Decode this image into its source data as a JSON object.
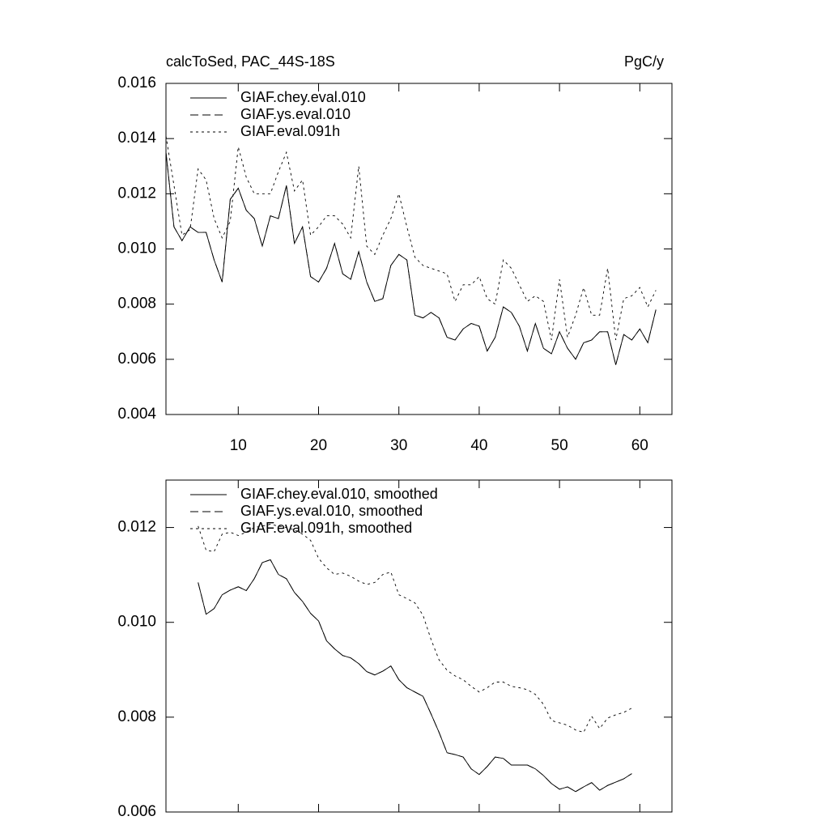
{
  "chart_data": [
    {
      "type": "line",
      "title": "calcToSed, PAC_44S-18S",
      "units": "PgC/y",
      "x": [
        1,
        2,
        3,
        4,
        5,
        6,
        7,
        8,
        9,
        10,
        11,
        12,
        13,
        14,
        15,
        16,
        17,
        18,
        19,
        20,
        21,
        22,
        23,
        24,
        25,
        26,
        27,
        28,
        29,
        30,
        31,
        32,
        33,
        34,
        35,
        36,
        37,
        38,
        39,
        40,
        41,
        42,
        43,
        44,
        45,
        46,
        47,
        48,
        49,
        50,
        51,
        52,
        53,
        54,
        55,
        56,
        57,
        58,
        59,
        60,
        61,
        62
      ],
      "xlim": [
        1,
        64
      ],
      "xticks": [
        10,
        20,
        30,
        40,
        50,
        60
      ],
      "ylim": [
        0.004,
        0.016
      ],
      "yticks": [
        0.004,
        0.006,
        0.008,
        {
          "value": 0.01,
          "label": "0.010"
        },
        0.012,
        0.014,
        0.016
      ],
      "series": [
        {
          "name": "GIAF.chey.eval.010",
          "color": "#000000",
          "style": "solid",
          "values": [
            0.0135,
            0.0108,
            0.0103,
            0.0108,
            0.0106,
            0.0106,
            0.0096,
            0.0088,
            0.0118,
            0.0122,
            0.0114,
            0.0111,
            0.0101,
            0.0112,
            0.0111,
            0.0123,
            0.0102,
            0.0108,
            0.009,
            0.0088,
            0.0093,
            0.0102,
            0.0091,
            0.0089,
            0.0099,
            0.0088,
            0.0081,
            0.0082,
            0.0094,
            0.0098,
            0.0096,
            0.0076,
            0.0075,
            0.0077,
            0.0075,
            0.0068,
            0.0067,
            0.0071,
            0.0073,
            0.0072,
            0.0063,
            0.0068,
            0.0079,
            0.0077,
            0.0072,
            0.0063,
            0.0073,
            0.0064,
            0.0062,
            0.007,
            0.0064,
            0.006,
            0.0066,
            0.0067,
            0.007,
            0.007,
            0.0058,
            0.0069,
            0.0067,
            0.0071,
            0.0066,
            0.0078
          ]
        },
        {
          "name": "GIAF.ys.eval.010",
          "color": "#000000",
          "style": "dashed",
          "values": [
            0.0135,
            0.0108,
            0.0103,
            0.0108,
            0.0106,
            0.0106,
            0.0096,
            0.0088,
            0.0118,
            0.0122,
            0.0114,
            0.0111,
            0.0101,
            0.0112,
            0.0111,
            0.0123,
            0.0102,
            0.0108,
            0.009,
            0.0088,
            0.0093,
            0.0102,
            0.0091,
            0.0089,
            0.0099,
            0.0088,
            0.0081,
            0.0082,
            0.0094,
            0.0098,
            0.0096,
            0.0076,
            0.0075,
            0.0077,
            0.0075,
            0.0068,
            0.0067,
            0.0071,
            0.0073,
            0.0072,
            0.0063,
            0.0068,
            0.0079,
            0.0077,
            0.0072,
            0.0063,
            0.0073,
            0.0064,
            0.0062,
            0.007,
            0.0064,
            0.006,
            0.0066,
            0.0067,
            0.007,
            0.007,
            0.0058,
            0.0069,
            0.0067,
            0.0071,
            0.0066,
            0.0078
          ]
        },
        {
          "name": "GIAF.eval.091h",
          "color": "#000000",
          "style": "dotted",
          "values": [
            0.0141,
            0.0123,
            0.0105,
            0.0107,
            0.0129,
            0.0125,
            0.0111,
            0.0104,
            0.011,
            0.0137,
            0.0126,
            0.012,
            0.012,
            0.012,
            0.0128,
            0.0135,
            0.0121,
            0.0125,
            0.0105,
            0.0108,
            0.0112,
            0.0112,
            0.0109,
            0.0104,
            0.013,
            0.0101,
            0.0098,
            0.0105,
            0.0111,
            0.012,
            0.0108,
            0.0097,
            0.0094,
            0.0093,
            0.0092,
            0.0091,
            0.0081,
            0.0087,
            0.0087,
            0.009,
            0.0082,
            0.008,
            0.0096,
            0.0093,
            0.0087,
            0.0081,
            0.0083,
            0.0081,
            0.0067,
            0.0089,
            0.0068,
            0.0076,
            0.0086,
            0.0076,
            0.0076,
            0.0093,
            0.0067,
            0.0082,
            0.0083,
            0.0086,
            0.0079,
            0.0085
          ]
        }
      ]
    },
    {
      "type": "line",
      "x": [
        5,
        6,
        7,
        8,
        9,
        10,
        11,
        12,
        13,
        14,
        15,
        16,
        17,
        18,
        19,
        20,
        21,
        22,
        23,
        24,
        25,
        26,
        27,
        28,
        29,
        30,
        31,
        32,
        33,
        34,
        35,
        36,
        37,
        38,
        39,
        40,
        41,
        42,
        43,
        44,
        45,
        46,
        47,
        48,
        49,
        50,
        51,
        52,
        53,
        54,
        55,
        56,
        57,
        58,
        59
      ],
      "xlim": [
        1,
        64
      ],
      "xticks": [
        10,
        20,
        30,
        40,
        50,
        60
      ],
      "ylim": [
        0.006,
        0.013
      ],
      "yticks": [
        0.006,
        0.008,
        {
          "value": 0.01,
          "label": "0.010"
        },
        0.012
      ],
      "series": [
        {
          "name": "GIAF.chey.eval.010, smoothed",
          "color": "#000000",
          "style": "solid",
          "values": [
            0.01084,
            0.01017,
            0.01029,
            0.01058,
            0.01068,
            0.01075,
            0.01067,
            0.01092,
            0.01126,
            0.01132,
            0.01101,
            0.01092,
            0.01063,
            0.01044,
            0.01019,
            0.01003,
            0.00961,
            0.00944,
            0.0093,
            0.00925,
            0.00913,
            0.00896,
            0.00889,
            0.00897,
            0.00908,
            0.00879,
            0.00862,
            0.00853,
            0.00844,
            0.00807,
            0.00768,
            0.00725,
            0.00721,
            0.00716,
            0.00691,
            0.00679,
            0.00696,
            0.00716,
            0.00713,
            0.00699,
            0.00699,
            0.00699,
            0.00691,
            0.00677,
            0.0066,
            0.00648,
            0.00653,
            0.00643,
            0.00653,
            0.00662,
            0.00646,
            0.00656,
            0.00663,
            0.0067,
            0.00681
          ]
        },
        {
          "name": "GIAF.ys.eval.010, smoothed",
          "color": "#000000",
          "style": "dashed",
          "values": [
            0.01084,
            0.01017,
            0.01029,
            0.01058,
            0.01068,
            0.01075,
            0.01067,
            0.01092,
            0.01126,
            0.01132,
            0.01101,
            0.01092,
            0.01063,
            0.01044,
            0.01019,
            0.01003,
            0.00961,
            0.00944,
            0.0093,
            0.00925,
            0.00913,
            0.00896,
            0.00889,
            0.00897,
            0.00908,
            0.00879,
            0.00862,
            0.00853,
            0.00844,
            0.00807,
            0.00768,
            0.00725,
            0.00721,
            0.00716,
            0.00691,
            0.00679,
            0.00696,
            0.00716,
            0.00713,
            0.00699,
            0.00699,
            0.00699,
            0.00691,
            0.00677,
            0.0066,
            0.00648,
            0.00653,
            0.00643,
            0.00653,
            0.00662,
            0.00646,
            0.00656,
            0.00663,
            0.0067,
            0.00681
          ]
        },
        {
          "name": "GIAF.eval.091h, smoothed",
          "color": "#000000",
          "style": "dotted",
          "values": [
            0.01203,
            0.01152,
            0.01149,
            0.01186,
            0.0119,
            0.01183,
            0.0119,
            0.012,
            0.01203,
            0.01207,
            0.01203,
            0.012,
            0.01195,
            0.01186,
            0.01173,
            0.01135,
            0.01115,
            0.01101,
            0.01104,
            0.01097,
            0.01087,
            0.0108,
            0.01084,
            0.01101,
            0.01106,
            0.01058,
            0.0105,
            0.01041,
            0.01015,
            0.00964,
            0.00921,
            0.00899,
            0.00887,
            0.00879,
            0.00865,
            0.00853,
            0.00862,
            0.00874,
            0.00874,
            0.00865,
            0.00862,
            0.00858,
            0.00848,
            0.00827,
            0.00793,
            0.00788,
            0.00783,
            0.00773,
            0.00768,
            0.00802,
            0.00776,
            0.00798,
            0.00805,
            0.0081,
            0.00819
          ]
        }
      ]
    }
  ]
}
